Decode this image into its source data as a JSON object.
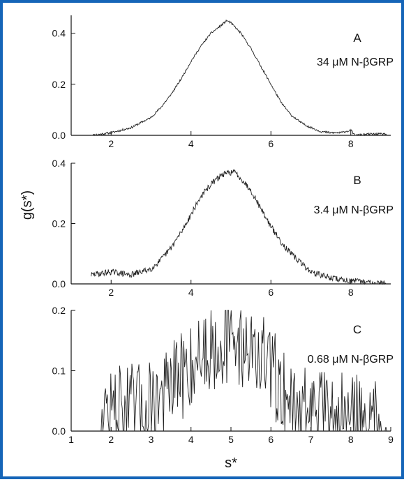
{
  "chart_data": {
    "type": "line",
    "xlabel": "s*",
    "ylabel": "g(s*)",
    "xlim": [
      1,
      9
    ],
    "panels": [
      {
        "letter": "A",
        "label": "34 μM N-βGRP",
        "ylim": [
          0,
          0.47
        ],
        "yticks": [
          "0.0",
          "0.2",
          "0.4"
        ],
        "xticks": [
          "2",
          "4",
          "6",
          "8"
        ],
        "series": [
          {
            "x": [
              1.5,
              2.0,
              2.5,
              3.0,
              3.25,
              3.5,
              3.75,
              4.0,
              4.25,
              4.5,
              4.75,
              4.9,
              5.0,
              5.25,
              5.5,
              5.75,
              6.0,
              6.25,
              6.5,
              6.75,
              7.0,
              7.25,
              7.5,
              7.75,
              8.0,
              8.1,
              8.5,
              8.9
            ],
            "y": [
              0.0,
              0.01,
              0.03,
              0.07,
              0.11,
              0.16,
              0.22,
              0.29,
              0.35,
              0.4,
              0.43,
              0.45,
              0.44,
              0.4,
              0.34,
              0.27,
              0.2,
              0.13,
              0.08,
              0.05,
              0.03,
              0.015,
              0.01,
              0.01,
              0.02,
              0.0,
              0.005,
              0.005
            ]
          }
        ]
      },
      {
        "letter": "B",
        "label": "3.4 μM N-βGRP",
        "ylim": [
          0,
          0.4
        ],
        "yticks": [
          "0.0",
          "0.2",
          "0.4"
        ],
        "xticks": [
          "2",
          "4",
          "6",
          "8"
        ],
        "series": [
          {
            "x": [
              1.5,
              1.75,
              2.0,
              2.5,
              3.0,
              3.25,
              3.5,
              3.75,
              4.0,
              4.25,
              4.5,
              4.75,
              5.0,
              5.1,
              5.25,
              5.5,
              5.75,
              6.0,
              6.25,
              6.5,
              6.75,
              7.0,
              7.5,
              8.0,
              8.5,
              8.9
            ],
            "y": [
              0.03,
              0.035,
              0.04,
              0.03,
              0.05,
              0.08,
              0.12,
              0.17,
              0.23,
              0.29,
              0.33,
              0.36,
              0.37,
              0.37,
              0.35,
              0.31,
              0.25,
              0.19,
              0.14,
              0.1,
              0.07,
              0.04,
              0.02,
              0.01,
              0.005,
              0.002
            ]
          }
        ]
      },
      {
        "letter": "C",
        "label": "0.68 μM N-βGRP",
        "ylim": [
          0,
          0.2
        ],
        "yticks": [
          "0.0",
          "0.1",
          "0.2"
        ],
        "xticks": [
          "1",
          "2",
          "3",
          "4",
          "5",
          "6",
          "7",
          "8",
          "9"
        ],
        "series": [
          {
            "x": [
              1.75,
              2.0,
              2.5,
              2.9,
              3.0,
              3.3,
              3.5,
              3.75,
              4.0,
              4.25,
              4.5,
              4.7,
              4.9,
              5.0,
              5.2,
              5.5,
              5.75,
              6.0,
              6.2,
              6.4,
              6.6,
              7.0,
              7.5,
              8.0,
              8.5,
              8.9
            ],
            "y": [
              0.03,
              0.03,
              0.035,
              0.04,
              0.05,
              0.06,
              0.07,
              0.09,
              0.11,
              0.13,
              0.14,
              0.15,
              0.15,
              0.15,
              0.15,
              0.14,
              0.12,
              0.1,
              0.08,
              0.06,
              0.04,
              0.03,
              0.02,
              0.02,
              0.015,
              0.015
            ]
          }
        ]
      }
    ]
  }
}
